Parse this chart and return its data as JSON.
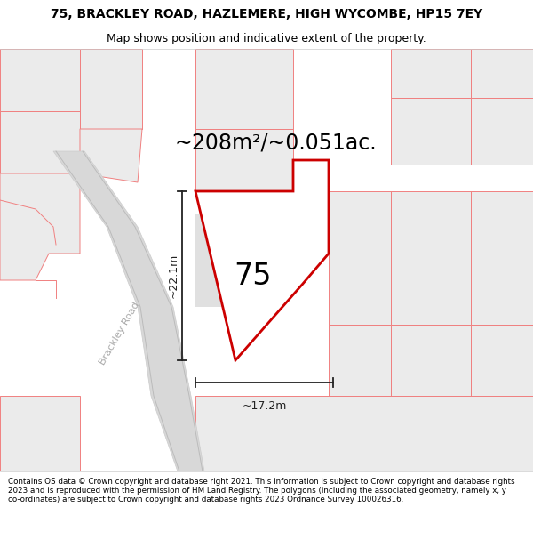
{
  "title_line1": "75, BRACKLEY ROAD, HAZLEMERE, HIGH WYCOMBE, HP15 7EY",
  "title_line2": "Map shows position and indicative extent of the property.",
  "area_text": "~208m²/~0.051ac.",
  "label_75": "75",
  "dim_vertical": "~22.1m",
  "dim_horizontal": "~17.2m",
  "road_label": "Brackley Road",
  "footer_text": "Contains OS data © Crown copyright and database right 2021. This information is subject to Crown copyright and database rights 2023 and is reproduced with the permission of HM Land Registry. The polygons (including the associated geometry, namely x, y co-ordinates) are subject to Crown copyright and database rights 2023 Ordnance Survey 100026316.",
  "bg_color": "#ffffff",
  "map_bg": "#ffffff",
  "plot_fill": "#f0f0f0",
  "plot_edge": "#cc0000",
  "other_plot_fill": "#ebebeb",
  "other_plot_edge": "#f08080",
  "road_fill": "#d8d8d8",
  "road_edge": "#cccccc",
  "dim_color": "#222222",
  "title_color": "#000000",
  "footer_color": "#000000",
  "title_fontsize": 10,
  "subtitle_fontsize": 9,
  "area_fontsize": 17,
  "label_fontsize": 24,
  "dim_fontsize": 9,
  "road_fontsize": 8
}
